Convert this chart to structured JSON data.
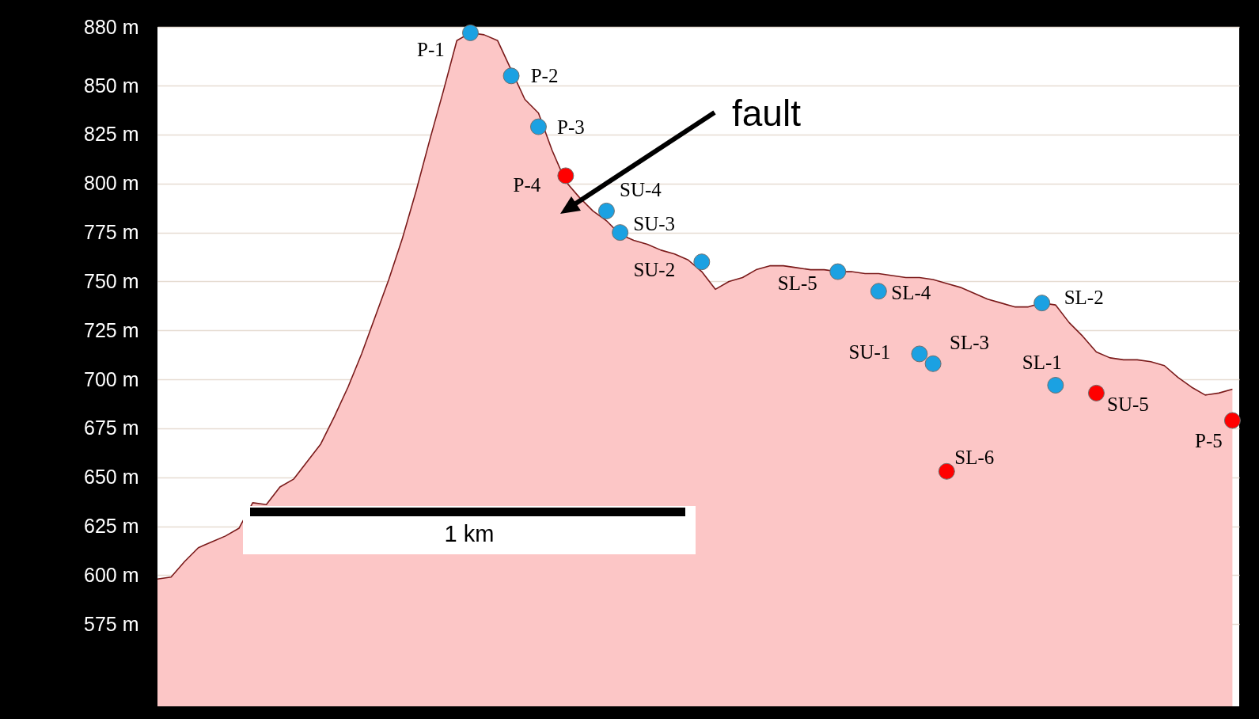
{
  "chart_data": {
    "type": "area",
    "categories": [
      null,
      null,
      null,
      null,
      null,
      null,
      null,
      null,
      null,
      null,
      null,
      null,
      null,
      null,
      null,
      null,
      null,
      null,
      null,
      null,
      null,
      null,
      null,
      null,
      null,
      null,
      null,
      null,
      null,
      null,
      null,
      null,
      null,
      null,
      null,
      null,
      null,
      null,
      null,
      null,
      null,
      null,
      null,
      null,
      null,
      null,
      null,
      null,
      null,
      null,
      null,
      null,
      null,
      null,
      null,
      null,
      null,
      null,
      null,
      null,
      null,
      null,
      null,
      null,
      null,
      null,
      null,
      null,
      null,
      null,
      null,
      null,
      null,
      null,
      null,
      null,
      null,
      null,
      null,
      null
    ],
    "series": [
      {
        "type": "area",
        "color": "#fcc6c6",
        "values": [
          598,
          599,
          607,
          614,
          617,
          620,
          624,
          637,
          636,
          645,
          649,
          658,
          667,
          681,
          696,
          713,
          732,
          751,
          772,
          796,
          822,
          847,
          873,
          877,
          876,
          873,
          858,
          843,
          836,
          817,
          801,
          793,
          786,
          781,
          774,
          771,
          769,
          766,
          764,
          761,
          755,
          746,
          750,
          752,
          756,
          758,
          758,
          757,
          756,
          756,
          755,
          755,
          754,
          754,
          753,
          752,
          752,
          751,
          749,
          747,
          744,
          741,
          739,
          737,
          737,
          739,
          738,
          729,
          722,
          714,
          711,
          710,
          710,
          709,
          707,
          701,
          696,
          692,
          693,
          695
        ]
      },
      {
        "type": "scatter",
        "color": "#1ba1e2",
        "values": [
          null,
          null,
          null,
          null,
          null,
          null,
          null,
          null,
          null,
          null,
          null,
          null,
          null,
          null,
          null,
          null,
          null,
          null,
          null,
          null,
          null,
          null,
          null,
          877,
          null,
          null,
          855,
          null,
          829,
          null,
          null,
          null,
          null,
          786,
          775,
          null,
          null,
          null,
          null,
          null,
          760,
          null,
          null,
          null,
          null,
          null,
          null,
          null,
          null,
          null,
          755,
          null,
          null,
          745,
          null,
          null,
          713,
          708,
          null,
          null,
          null,
          null,
          null,
          null,
          null,
          739,
          697,
          null,
          null,
          null,
          null,
          null,
          null,
          null,
          null,
          null,
          null,
          null,
          null,
          null
        ],
        "value_labels": [
          null,
          null,
          null,
          null,
          null,
          null,
          null,
          null,
          null,
          null,
          null,
          null,
          null,
          null,
          null,
          null,
          null,
          null,
          null,
          null,
          null,
          null,
          null,
          "P-1",
          null,
          null,
          "P-2",
          null,
          "P-3",
          null,
          null,
          null,
          null,
          "SU-4",
          "SU-3",
          null,
          null,
          null,
          null,
          null,
          "SU-2",
          null,
          null,
          null,
          null,
          null,
          null,
          null,
          null,
          null,
          "SL-5",
          null,
          null,
          "SL-4",
          null,
          null,
          "SU-1",
          "SL-3",
          null,
          null,
          null,
          null,
          null,
          null,
          null,
          "SL-2",
          "SL-1",
          null,
          null,
          null,
          null,
          null,
          null,
          null,
          null,
          null,
          null,
          null,
          null,
          null
        ]
      },
      {
        "type": "scatter",
        "color": "#ff0000",
        "values": [
          null,
          null,
          null,
          null,
          null,
          null,
          null,
          null,
          null,
          null,
          null,
          null,
          null,
          null,
          null,
          null,
          null,
          null,
          null,
          null,
          null,
          null,
          null,
          null,
          null,
          null,
          null,
          null,
          null,
          null,
          804,
          null,
          null,
          null,
          null,
          null,
          null,
          null,
          null,
          null,
          null,
          null,
          null,
          null,
          null,
          null,
          null,
          null,
          null,
          null,
          null,
          null,
          null,
          null,
          null,
          null,
          null,
          null,
          653,
          null,
          null,
          null,
          null,
          null,
          null,
          null,
          null,
          null,
          null,
          693,
          null,
          null,
          null,
          null,
          null,
          null,
          null,
          null,
          null,
          679
        ],
        "value_labels": [
          null,
          null,
          null,
          null,
          null,
          null,
          null,
          null,
          null,
          null,
          null,
          null,
          null,
          null,
          null,
          null,
          null,
          null,
          null,
          null,
          null,
          null,
          null,
          null,
          null,
          null,
          null,
          null,
          null,
          null,
          "P-4",
          null,
          null,
          null,
          null,
          null,
          null,
          null,
          null,
          null,
          null,
          null,
          null,
          null,
          null,
          null,
          null,
          null,
          null,
          null,
          null,
          null,
          null,
          null,
          null,
          null,
          null,
          null,
          "SL-6",
          null,
          null,
          null,
          null,
          null,
          null,
          null,
          null,
          null,
          null,
          "SU-5",
          null,
          null,
          null,
          null,
          null,
          null,
          null,
          null,
          null,
          "P-5"
        ]
      }
    ],
    "ylim": [
      533,
      880
    ],
    "yticks": [
      {
        "value": 880,
        "label": "880 m"
      },
      {
        "value": 850,
        "label": "850 m"
      },
      {
        "value": 825,
        "label": "825 m"
      },
      {
        "value": 800,
        "label": "800 m"
      },
      {
        "value": 775,
        "label": "775 m"
      },
      {
        "value": 750,
        "label": "750 m"
      },
      {
        "value": 725,
        "label": "725 m"
      },
      {
        "value": 700,
        "label": "700 m"
      },
      {
        "value": 675,
        "label": "675 m"
      },
      {
        "value": 650,
        "label": "650 m"
      },
      {
        "value": 625,
        "label": "625 m"
      },
      {
        "value": 600,
        "label": "600 m"
      },
      {
        "value": 575,
        "label": "575 m"
      }
    ],
    "tick_labels": "y",
    "grid": true,
    "annotations": [
      "fault",
      "1 km"
    ]
  }
}
